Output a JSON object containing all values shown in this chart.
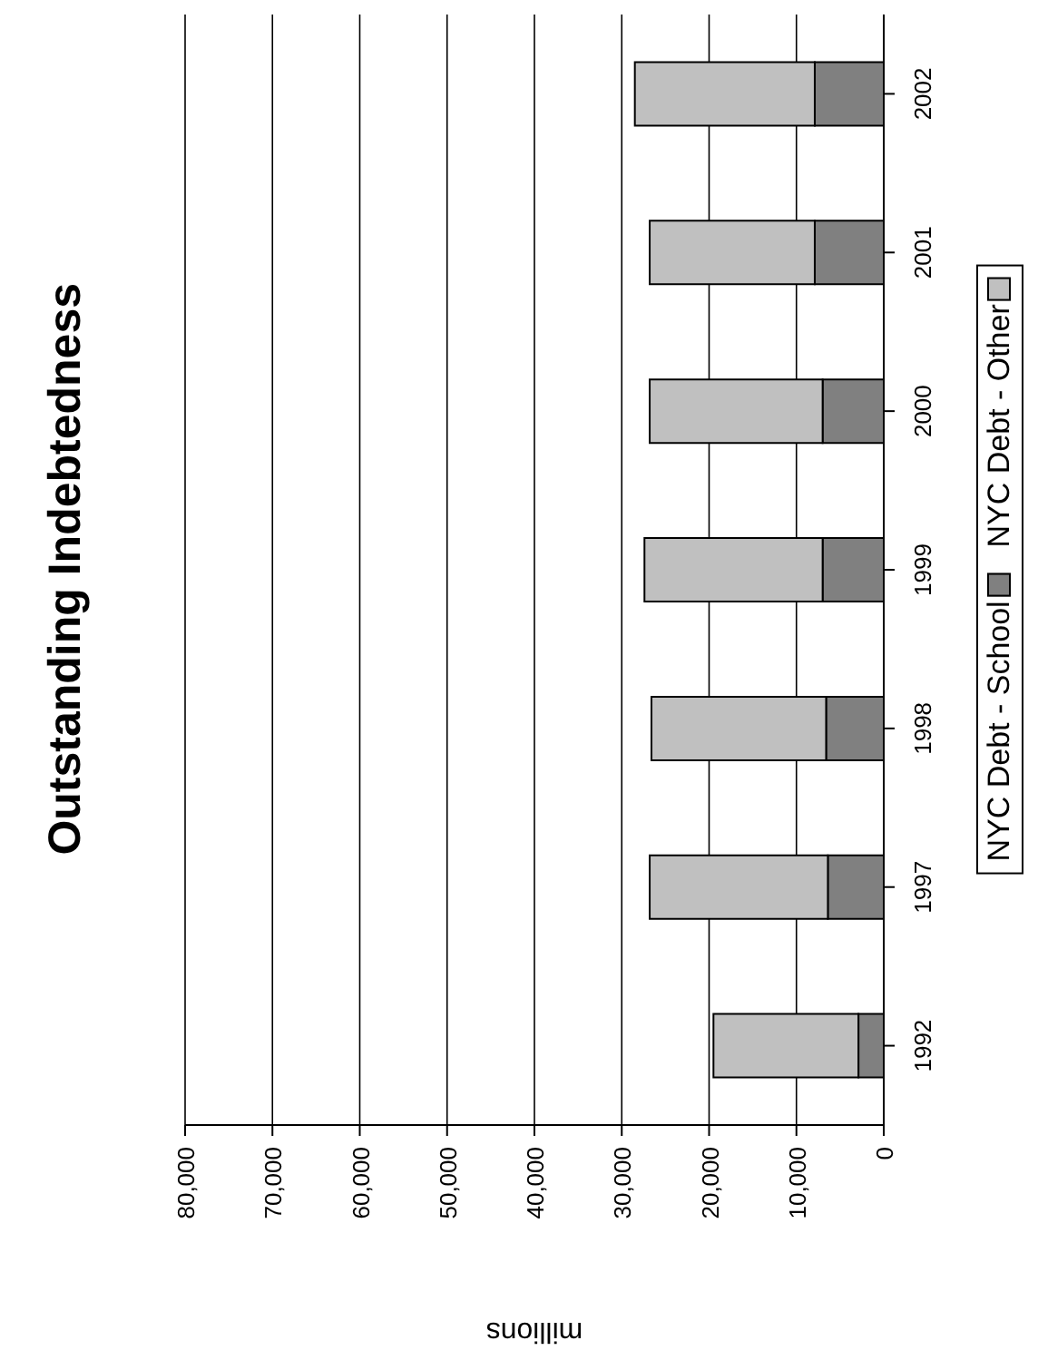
{
  "chart_data": {
    "type": "bar",
    "orientation": "horizontal",
    "title": "Outstanding Indebtedness",
    "xlabel": "millions",
    "categories": [
      "2002",
      "2001",
      "2000",
      "1999",
      "1998",
      "1997",
      "1992"
    ],
    "stacked": true,
    "series": [
      {
        "name": "NYC Debt - School",
        "color": "#808080",
        "values": [
          7900,
          7900,
          7000,
          7000,
          6600,
          6400,
          2900
        ]
      },
      {
        "name": "NYC Debt - Other",
        "color": "#c0c0c0",
        "values": [
          20600,
          18900,
          19800,
          20400,
          20000,
          20400,
          16600
        ]
      }
    ],
    "xlim": [
      80000,
      0
    ],
    "xticks": [
      0,
      {
        "value": 10000,
        "label": "10,000"
      },
      {
        "value": 20000,
        "label": "20,000"
      },
      {
        "value": 30000,
        "label": "30,000"
      },
      {
        "value": 40000,
        "label": "40,000"
      },
      {
        "value": 50000,
        "label": "50,000"
      },
      {
        "value": 60000,
        "label": "60,000"
      },
      {
        "value": 70000,
        "label": "70,000"
      },
      {
        "value": 80000,
        "label": "80,000"
      }
    ],
    "grid": "x",
    "legend": "right"
  }
}
